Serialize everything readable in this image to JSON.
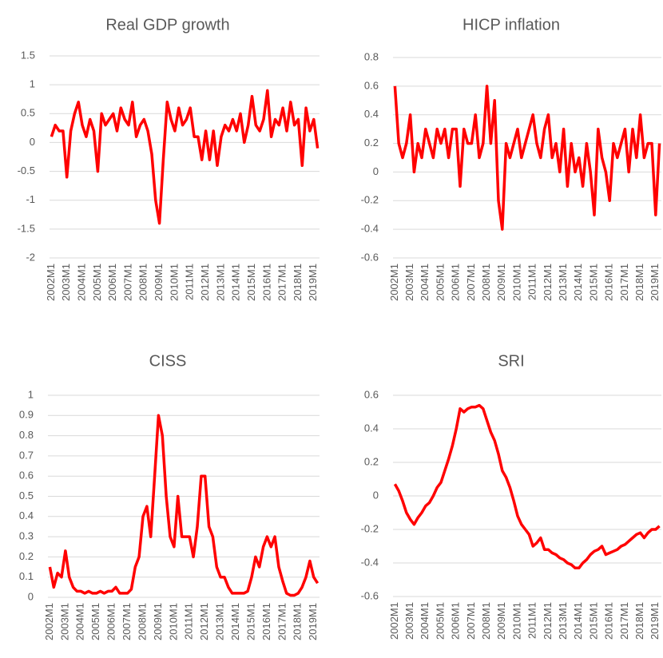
{
  "chart_data": [
    {
      "type": "line",
      "title": "Real GDP growth",
      "categories": [
        "2002M1",
        null,
        null,
        null,
        "2003M1",
        null,
        null,
        null,
        "2004M1",
        null,
        null,
        null,
        "2005M1",
        null,
        null,
        null,
        "2006M1",
        null,
        null,
        null,
        "2007M1",
        null,
        null,
        null,
        "2008M1",
        null,
        null,
        null,
        "2009M1",
        null,
        null,
        null,
        "2010M1",
        null,
        null,
        null,
        "2011M1",
        null,
        null,
        null,
        "2012M1",
        null,
        null,
        null,
        "2013M1",
        null,
        null,
        null,
        "2014M1",
        null,
        null,
        null,
        "2015M1",
        null,
        null,
        null,
        "2016M1",
        null,
        null,
        null,
        "2017M1",
        null,
        null,
        null,
        "2018M1",
        null,
        null,
        null,
        "2019M1",
        null
      ],
      "values": [
        0.1,
        0.3,
        0.2,
        0.2,
        -0.6,
        0.2,
        0.5,
        0.7,
        0.3,
        0.1,
        0.4,
        0.2,
        -0.5,
        0.5,
        0.3,
        0.4,
        0.5,
        0.2,
        0.6,
        0.4,
        0.3,
        0.7,
        0.1,
        0.3,
        0.4,
        0.2,
        -0.2,
        -1.0,
        -1.4,
        -0.3,
        0.7,
        0.4,
        0.2,
        0.6,
        0.3,
        0.4,
        0.6,
        0.1,
        0.1,
        -0.3,
        0.2,
        -0.3,
        0.2,
        -0.4,
        0.1,
        0.3,
        0.2,
        0.4,
        0.2,
        0.5,
        0.0,
        0.3,
        0.8,
        0.3,
        0.2,
        0.4,
        0.9,
        0.1,
        0.4,
        0.3,
        0.6,
        0.2,
        0.7,
        0.3,
        0.4,
        -0.4,
        0.6,
        0.2,
        0.4,
        -0.1
      ],
      "color": "#ff0000",
      "ylim": [
        -2,
        1.5
      ],
      "yticks": [
        -2,
        -1.5,
        -1,
        -0.5,
        0,
        0.5,
        1,
        1.5
      ],
      "grid": true
    },
    {
      "type": "line",
      "title": "HICP inflation",
      "categories": [
        "2002M1",
        null,
        null,
        null,
        "2003M1",
        null,
        null,
        null,
        "2004M1",
        null,
        null,
        null,
        "2005M1",
        null,
        null,
        null,
        "2006M1",
        null,
        null,
        null,
        "2007M1",
        null,
        null,
        null,
        "2008M1",
        null,
        null,
        null,
        "2009M1",
        null,
        null,
        null,
        "2010M1",
        null,
        null,
        null,
        "2011M1",
        null,
        null,
        null,
        "2012M1",
        null,
        null,
        null,
        "2013M1",
        null,
        null,
        null,
        "2014M1",
        null,
        null,
        null,
        "2015M1",
        null,
        null,
        null,
        "2016M1",
        null,
        null,
        null,
        "2017M1",
        null,
        null,
        null,
        "2018M1",
        null,
        null,
        null,
        "2019M1",
        null
      ],
      "values": [
        0.6,
        0.2,
        0.1,
        0.2,
        0.4,
        0.0,
        0.2,
        0.1,
        0.3,
        0.2,
        0.1,
        0.3,
        0.2,
        0.3,
        0.1,
        0.3,
        0.3,
        -0.1,
        0.3,
        0.2,
        0.2,
        0.4,
        0.1,
        0.2,
        0.6,
        0.2,
        0.5,
        -0.2,
        -0.4,
        0.2,
        0.1,
        0.2,
        0.3,
        0.1,
        0.2,
        0.3,
        0.4,
        0.2,
        0.1,
        0.3,
        0.4,
        0.1,
        0.2,
        0.0,
        0.3,
        -0.1,
        0.2,
        0.0,
        0.1,
        -0.1,
        0.2,
        0.0,
        -0.3,
        0.3,
        0.1,
        0.0,
        -0.2,
        0.2,
        0.1,
        0.2,
        0.3,
        0.0,
        0.3,
        0.1,
        0.4,
        0.1,
        0.2,
        0.2,
        -0.3,
        0.2
      ],
      "color": "#ff0000",
      "ylim": [
        -0.6,
        0.8
      ],
      "yticks": [
        -0.6,
        -0.4,
        -0.2,
        0,
        0.2,
        0.4,
        0.6,
        0.8
      ],
      "grid": true
    },
    {
      "type": "line",
      "title": "CISS",
      "categories": [
        "2002M1",
        null,
        null,
        null,
        "2003M1",
        null,
        null,
        null,
        "2004M1",
        null,
        null,
        null,
        "2005M1",
        null,
        null,
        null,
        "2006M1",
        null,
        null,
        null,
        "2007M1",
        null,
        null,
        null,
        "2008M1",
        null,
        null,
        null,
        "2009M1",
        null,
        null,
        null,
        "2010M1",
        null,
        null,
        null,
        "2011M1",
        null,
        null,
        null,
        "2012M1",
        null,
        null,
        null,
        "2013M1",
        null,
        null,
        null,
        "2014M1",
        null,
        null,
        null,
        "2015M1",
        null,
        null,
        null,
        "2016M1",
        null,
        null,
        null,
        "2017M1",
        null,
        null,
        null,
        "2018M1",
        null,
        null,
        null,
        "2019M1",
        null
      ],
      "values": [
        0.15,
        0.05,
        0.12,
        0.1,
        0.23,
        0.1,
        0.05,
        0.03,
        0.03,
        0.02,
        0.03,
        0.02,
        0.02,
        0.03,
        0.02,
        0.03,
        0.03,
        0.05,
        0.02,
        0.02,
        0.02,
        0.04,
        0.15,
        0.2,
        0.4,
        0.45,
        0.3,
        0.6,
        0.9,
        0.8,
        0.5,
        0.3,
        0.25,
        0.5,
        0.3,
        0.3,
        0.3,
        0.2,
        0.35,
        0.6,
        0.6,
        0.35,
        0.3,
        0.15,
        0.1,
        0.1,
        0.05,
        0.02,
        0.02,
        0.02,
        0.02,
        0.03,
        0.1,
        0.2,
        0.15,
        0.25,
        0.3,
        0.25,
        0.3,
        0.15,
        0.08,
        0.02,
        0.01,
        0.01,
        0.02,
        0.05,
        0.1,
        0.18,
        0.1,
        0.07
      ],
      "color": "#ff0000",
      "ylim": [
        0,
        1
      ],
      "yticks": [
        0,
        0.1,
        0.2,
        0.3,
        0.4,
        0.5,
        0.6,
        0.7,
        0.8,
        0.9,
        1
      ],
      "grid": true
    },
    {
      "type": "line",
      "title": "SRI",
      "categories": [
        "2002M1",
        null,
        null,
        null,
        "2003M1",
        null,
        null,
        null,
        "2004M1",
        null,
        null,
        null,
        "2005M1",
        null,
        null,
        null,
        "2006M1",
        null,
        null,
        null,
        "2007M1",
        null,
        null,
        null,
        "2008M1",
        null,
        null,
        null,
        "2009M1",
        null,
        null,
        null,
        "2010M1",
        null,
        null,
        null,
        "2011M1",
        null,
        null,
        null,
        "2012M1",
        null,
        null,
        null,
        "2013M1",
        null,
        null,
        null,
        "2014M1",
        null,
        null,
        null,
        "2015M1",
        null,
        null,
        null,
        "2016M1",
        null,
        null,
        null,
        "2017M1",
        null,
        null,
        null,
        "2018M1",
        null,
        null,
        null,
        "2019M1",
        null
      ],
      "values": [
        0.07,
        0.03,
        -0.03,
        -0.1,
        -0.14,
        -0.17,
        -0.13,
        -0.1,
        -0.06,
        -0.04,
        0.0,
        0.05,
        0.08,
        0.15,
        0.22,
        0.3,
        0.4,
        0.52,
        0.5,
        0.52,
        0.53,
        0.53,
        0.54,
        0.52,
        0.45,
        0.38,
        0.33,
        0.25,
        0.15,
        0.11,
        0.05,
        -0.03,
        -0.12,
        -0.17,
        -0.2,
        -0.23,
        -0.3,
        -0.28,
        -0.25,
        -0.32,
        -0.32,
        -0.34,
        -0.35,
        -0.37,
        -0.38,
        -0.4,
        -0.41,
        -0.43,
        -0.43,
        -0.4,
        -0.38,
        -0.35,
        -0.33,
        -0.32,
        -0.3,
        -0.35,
        -0.34,
        -0.33,
        -0.32,
        -0.3,
        -0.29,
        -0.27,
        -0.25,
        -0.23,
        -0.22,
        -0.25,
        -0.22,
        -0.2,
        -0.2,
        -0.18
      ],
      "color": "#ff0000",
      "ylim": [
        -0.6,
        0.6
      ],
      "yticks": [
        -0.6,
        -0.4,
        -0.2,
        0,
        0.2,
        0.4,
        0.6
      ],
      "grid": true
    }
  ]
}
